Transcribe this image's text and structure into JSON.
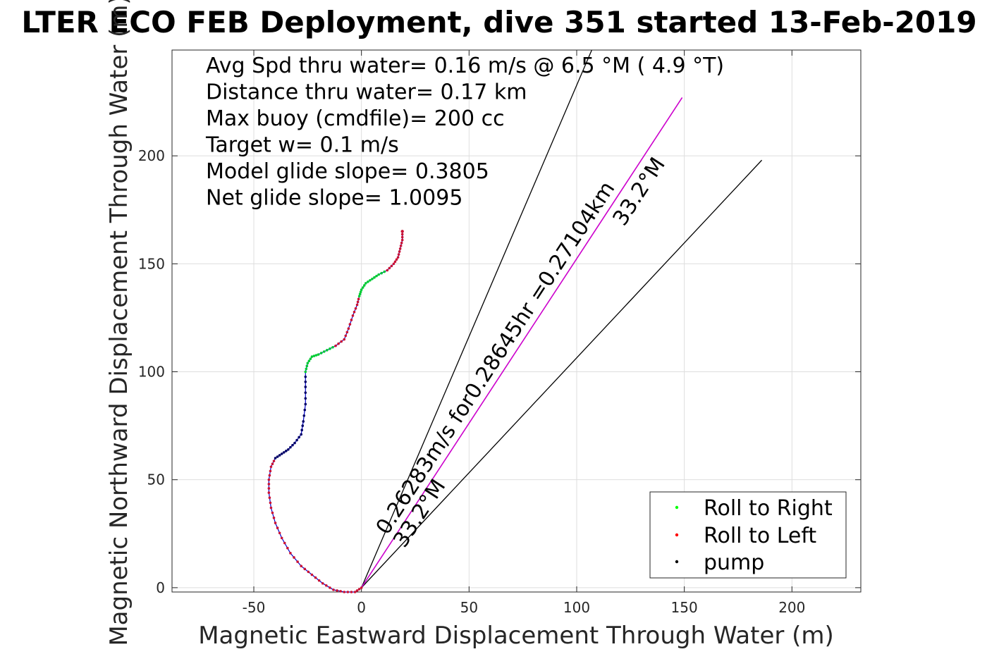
{
  "chart_data": {
    "type": "scatter",
    "title": "LTER ECO FEB Deployment, dive 351 started 13-Feb-2019",
    "xlabel": "Magnetic Eastward Displacement Through Water (m)",
    "ylabel": "Magnetic Northward Displacement Through Water (m)",
    "xlim": [
      -88,
      232
    ],
    "ylim": [
      -2,
      249
    ],
    "xticks": [
      -50,
      0,
      50,
      100,
      150,
      200
    ],
    "yticks": [
      0,
      50,
      100,
      150,
      200
    ],
    "grid": true,
    "legend_position": "bottom-right",
    "annotations": [
      "Avg Spd thru water=  0.16 m/s @   6.5 °M (  4.9 °T)",
      "Distance thru water=  0.17 km",
      "Max buoy (cmdfile)= 200 cc",
      "Target w= 0.1 m/s",
      "Model glide slope= 0.3805",
      "Net glide slope= 1.0095"
    ],
    "lines": [
      {
        "name": "cone_left",
        "color": "#000000",
        "x": [
          0,
          107
        ],
        "y": [
          0,
          249
        ]
      },
      {
        "name": "cone_right",
        "color": "#000000",
        "x": [
          0,
          186
        ],
        "y": [
          0,
          198
        ]
      },
      {
        "name": "heading",
        "color": "#cc00cc",
        "x": [
          0,
          149
        ],
        "y": [
          0,
          227
        ]
      }
    ],
    "rotated_labels": [
      {
        "text": "0.26283m/s for0.28645hr =0.27104km",
        "x": 12,
        "y": 24,
        "angle": -56.8
      },
      {
        "text": "33.2°M",
        "x": 20,
        "y": 18,
        "angle": -56.8
      },
      {
        "text": "33.2°M",
        "x": 122,
        "y": 167,
        "angle": -56.8
      }
    ],
    "track": {
      "color": "#0000cc",
      "x": [
        0,
        -3,
        -8,
        -13,
        -18,
        -23,
        -28,
        -33,
        -37,
        -40,
        -42,
        -43,
        -43,
        -42,
        -40,
        -37,
        -34,
        -31,
        -28,
        -27,
        -26,
        -26,
        -26,
        -25,
        -23,
        -20,
        -16,
        -12,
        -8,
        -6,
        -4,
        -2,
        -1,
        0,
        2,
        5,
        8,
        12,
        15,
        17,
        18,
        19,
        19
      ],
      "y": [
        0,
        -2,
        -2,
        -1,
        2,
        6,
        10,
        16,
        23,
        30,
        37,
        44,
        50,
        56,
        60,
        62,
        64,
        67,
        71,
        77,
        85,
        93,
        100,
        104,
        107,
        108,
        110,
        112,
        115,
        120,
        126,
        131,
        135,
        138,
        141,
        143,
        145,
        147,
        150,
        153,
        157,
        161,
        165
      ],
      "kind": [
        "roll_left",
        "roll_left",
        "roll_left",
        "roll_left",
        "roll_left",
        "roll_left",
        "roll_left",
        "roll_left",
        "roll_left",
        "roll_left",
        "roll_left",
        "roll_left",
        "roll_left",
        "roll_left",
        "pump",
        "pump",
        "pump",
        "pump",
        "pump",
        "pump",
        "pump",
        "pump",
        "roll_right",
        "roll_right",
        "roll_right",
        "roll_right",
        "roll_right",
        "roll_left",
        "roll_left",
        "roll_left",
        "roll_left",
        "roll_left",
        "roll_right",
        "roll_right",
        "roll_right",
        "roll_right",
        "roll_right",
        "roll_left",
        "roll_left",
        "roll_left",
        "roll_left",
        "roll_left",
        "roll_left"
      ]
    },
    "series": [
      {
        "name": "Roll to Right",
        "color": "#00ff00",
        "marker": "dot"
      },
      {
        "name": "Roll to Left",
        "color": "#ff0000",
        "marker": "dot"
      },
      {
        "name": "pump",
        "color": "#000000",
        "marker": "dot"
      }
    ]
  }
}
